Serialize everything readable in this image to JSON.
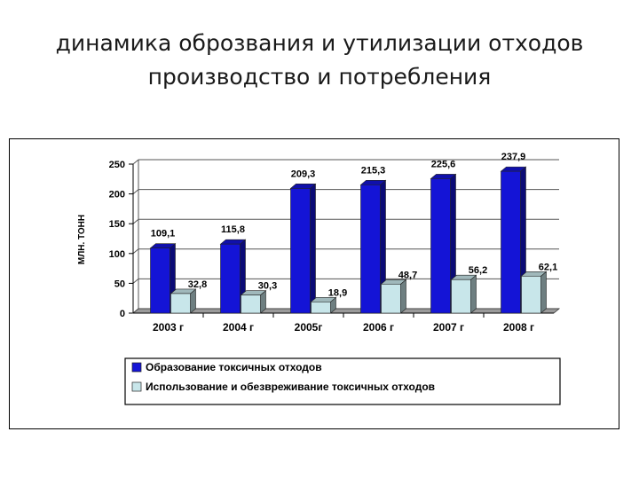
{
  "slide": {
    "title_line1": "динамика оброзвания и утилизации отходов",
    "title_line2": "производство и потребления"
  },
  "chart_data": {
    "type": "bar",
    "title": "",
    "xlabel": "",
    "ylabel": "МЛН. ТОНН",
    "ylim": [
      0,
      250
    ],
    "yticks": [
      0,
      50,
      100,
      150,
      200,
      250
    ],
    "grid": true,
    "legend_position": "bottom",
    "categories": [
      "2003 г",
      "2004 г",
      "2005г",
      "2006 г",
      "2007 г",
      "2008 г"
    ],
    "value_labels": {
      "Образование токсичных отходов": [
        "109,1",
        "115,8",
        "209,3",
        "215,3",
        "225,6",
        "237,9"
      ],
      "Использование и обезвреживание токсичных отходов": [
        "32,8",
        "30,3",
        "18,9",
        "48,7",
        "56,2",
        "62,1"
      ]
    },
    "series": [
      {
        "name": "Образование токсичных отходов",
        "color": "#1414d6",
        "values": [
          109.1,
          115.8,
          209.3,
          215.3,
          225.6,
          237.9
        ]
      },
      {
        "name": "Использование и обезвреживание токсичных отходов",
        "color": "#c8e6ea",
        "values": [
          32.8,
          30.3,
          18.9,
          48.7,
          56.2,
          62.1
        ]
      }
    ]
  }
}
